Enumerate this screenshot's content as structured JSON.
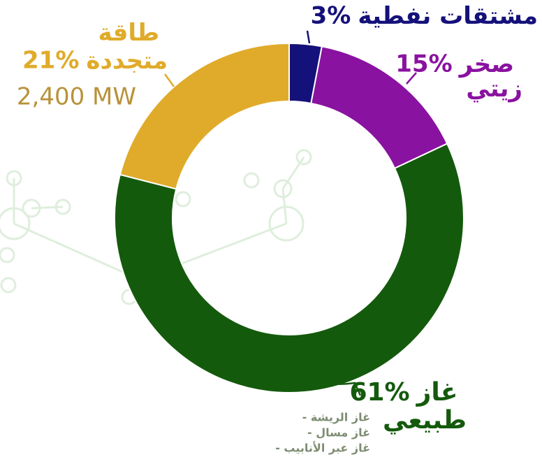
{
  "chart_data": {
    "type": "pie",
    "categories": [
      "مشتقات نفطية",
      "صخر زيتي",
      "غاز طبيعي",
      "طاقة متجددة"
    ],
    "values": [
      3,
      15,
      61,
      21
    ],
    "value_labels": [
      "3%",
      "15%",
      "61%",
      "21%"
    ],
    "colors": [
      "#15117a",
      "#8a12a0",
      "#145a0c",
      "#e0ab2a"
    ],
    "annotation": "2,400 MW",
    "notes": [
      "- غاز الريشة",
      "- غاز مسال",
      "- غاز عبر الأنابيب"
    ]
  }
}
